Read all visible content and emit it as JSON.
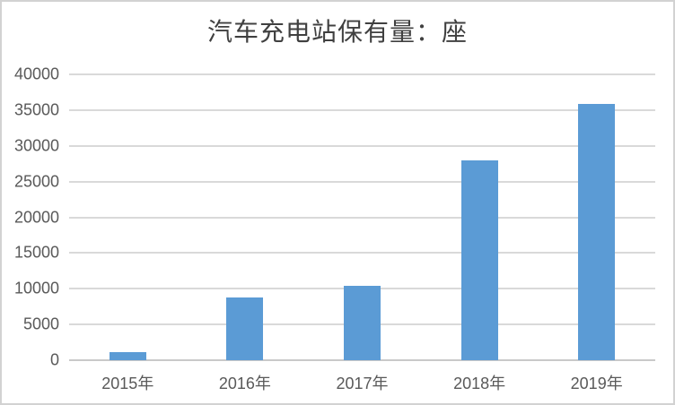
{
  "page": {
    "background": "#FFFFFF",
    "frame_border_color": "#D2D2D2"
  },
  "chart_data": {
    "type": "bar",
    "title": "汽车充电站保有量：座",
    "categories": [
      "2015年",
      "2016年",
      "2017年",
      "2018年",
      "2019年"
    ],
    "values": [
      1100,
      8750,
      10400,
      28000,
      35800
    ],
    "xlabel": "",
    "ylabel": "",
    "ylim": [
      0,
      40000
    ],
    "yticks": [
      0,
      5000,
      10000,
      15000,
      20000,
      25000,
      30000,
      35000,
      40000
    ],
    "grid": true,
    "legend_position": "none",
    "bar_color": "#5B9BD5",
    "gridline_color": "#D9D9D9",
    "axis_line_color": "#C9C9C9",
    "tick_label_color": "#595959",
    "title_color": "#404040"
  }
}
